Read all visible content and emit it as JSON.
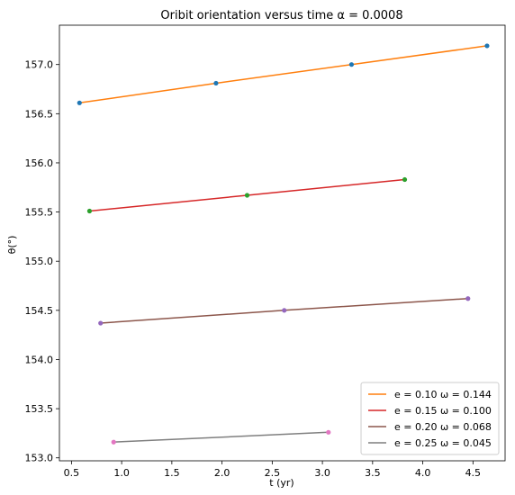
{
  "chart_data": {
    "type": "line",
    "title": "Oribit orientation versus time α = 0.0008",
    "xlabel": "t (yr)",
    "ylabel": "θ(°)",
    "xlim": [
      0.38,
      4.82
    ],
    "ylim": [
      152.97,
      157.4
    ],
    "x_ticks": [
      "0.5",
      "1.0",
      "1.5",
      "2.0",
      "2.5",
      "3.0",
      "3.5",
      "4.0",
      "4.5"
    ],
    "x_tick_values": [
      0.5,
      1.0,
      1.5,
      2.0,
      2.5,
      3.0,
      3.5,
      4.0,
      4.5
    ],
    "y_ticks": [
      "153.0",
      "153.5",
      "154.0",
      "154.5",
      "155.0",
      "155.5",
      "156.0",
      "156.5",
      "157.0"
    ],
    "y_tick_values": [
      153.0,
      153.5,
      154.0,
      154.5,
      155.0,
      155.5,
      156.0,
      156.5,
      157.0
    ],
    "legend_position": "lower-right",
    "series": [
      {
        "name": "e = 0.10   ω = 0.144",
        "color": "#ff7f0e",
        "marker_color": "#1f77b4",
        "x": [
          0.58,
          1.94,
          3.29,
          4.64
        ],
        "y": [
          156.61,
          156.81,
          157.0,
          157.19
        ]
      },
      {
        "name": "e = 0.15   ω = 0.100",
        "color": "#d62728",
        "marker_color": "#2ca02c",
        "x": [
          0.68,
          2.25,
          3.82
        ],
        "y": [
          155.51,
          155.67,
          155.83
        ]
      },
      {
        "name": "e = 0.20   ω = 0.068",
        "color": "#8c564b",
        "marker_color": "#9467bd",
        "x": [
          0.79,
          2.62,
          4.45
        ],
        "y": [
          154.37,
          154.5,
          154.62
        ]
      },
      {
        "name": "e = 0.25   ω = 0.045",
        "color": "#7f7f7f",
        "marker_color": "#e377c2",
        "x": [
          0.92,
          3.06
        ],
        "y": [
          153.16,
          153.26
        ]
      }
    ]
  }
}
